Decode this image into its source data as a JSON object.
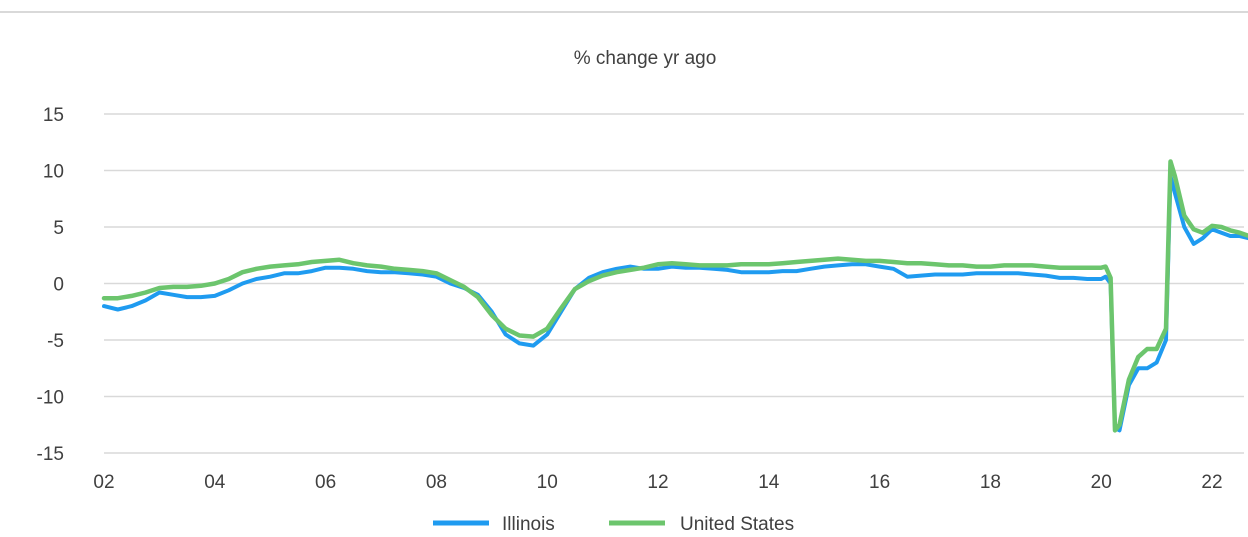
{
  "chart_data": {
    "type": "line",
    "title": "% change yr ago",
    "xlabel": "",
    "ylabel": "",
    "xlim": [
      2002.0,
      2022.67
    ],
    "ylim": [
      -15,
      15
    ],
    "y_ticks": [
      15,
      10,
      5,
      0,
      -5,
      -10,
      -15
    ],
    "x_ticks": [
      {
        "value": 2002,
        "label": "02"
      },
      {
        "value": 2004,
        "label": "04"
      },
      {
        "value": 2006,
        "label": "06"
      },
      {
        "value": 2008,
        "label": "08"
      },
      {
        "value": 2010,
        "label": "10"
      },
      {
        "value": 2012,
        "label": "12"
      },
      {
        "value": 2014,
        "label": "14"
      },
      {
        "value": 2016,
        "label": "16"
      },
      {
        "value": 2018,
        "label": "18"
      },
      {
        "value": 2020,
        "label": "20"
      },
      {
        "value": 2022,
        "label": "22"
      }
    ],
    "grid": "horizontal",
    "legend_position": "bottom-center",
    "series": [
      {
        "name": "Illinois",
        "color": "#1f9bf0",
        "points": [
          [
            2002.0,
            -2.0
          ],
          [
            2002.25,
            -2.3
          ],
          [
            2002.5,
            -2.0
          ],
          [
            2002.75,
            -1.5
          ],
          [
            2003.0,
            -0.8
          ],
          [
            2003.25,
            -1.0
          ],
          [
            2003.5,
            -1.2
          ],
          [
            2003.75,
            -1.2
          ],
          [
            2004.0,
            -1.1
          ],
          [
            2004.25,
            -0.6
          ],
          [
            2004.5,
            0.0
          ],
          [
            2004.75,
            0.4
          ],
          [
            2005.0,
            0.6
          ],
          [
            2005.25,
            0.9
          ],
          [
            2005.5,
            0.9
          ],
          [
            2005.75,
            1.1
          ],
          [
            2006.0,
            1.4
          ],
          [
            2006.25,
            1.4
          ],
          [
            2006.5,
            1.3
          ],
          [
            2006.75,
            1.1
          ],
          [
            2007.0,
            1.0
          ],
          [
            2007.25,
            1.0
          ],
          [
            2007.5,
            0.9
          ],
          [
            2007.75,
            0.8
          ],
          [
            2008.0,
            0.6
          ],
          [
            2008.25,
            0.0
          ],
          [
            2008.5,
            -0.4
          ],
          [
            2008.75,
            -1.0
          ],
          [
            2009.0,
            -2.5
          ],
          [
            2009.25,
            -4.5
          ],
          [
            2009.5,
            -5.3
          ],
          [
            2009.75,
            -5.5
          ],
          [
            2010.0,
            -4.5
          ],
          [
            2010.25,
            -2.5
          ],
          [
            2010.5,
            -0.5
          ],
          [
            2010.75,
            0.5
          ],
          [
            2011.0,
            1.0
          ],
          [
            2011.25,
            1.3
          ],
          [
            2011.5,
            1.5
          ],
          [
            2011.75,
            1.3
          ],
          [
            2012.0,
            1.3
          ],
          [
            2012.25,
            1.5
          ],
          [
            2012.5,
            1.4
          ],
          [
            2012.75,
            1.4
          ],
          [
            2013.0,
            1.3
          ],
          [
            2013.25,
            1.2
          ],
          [
            2013.5,
            1.0
          ],
          [
            2013.75,
            1.0
          ],
          [
            2014.0,
            1.0
          ],
          [
            2014.25,
            1.1
          ],
          [
            2014.5,
            1.1
          ],
          [
            2014.75,
            1.3
          ],
          [
            2015.0,
            1.5
          ],
          [
            2015.25,
            1.6
          ],
          [
            2015.5,
            1.7
          ],
          [
            2015.75,
            1.7
          ],
          [
            2016.0,
            1.5
          ],
          [
            2016.25,
            1.3
          ],
          [
            2016.5,
            0.6
          ],
          [
            2016.75,
            0.7
          ],
          [
            2017.0,
            0.8
          ],
          [
            2017.25,
            0.8
          ],
          [
            2017.5,
            0.8
          ],
          [
            2017.75,
            0.9
          ],
          [
            2018.0,
            0.9
          ],
          [
            2018.25,
            0.9
          ],
          [
            2018.5,
            0.9
          ],
          [
            2018.75,
            0.8
          ],
          [
            2019.0,
            0.7
          ],
          [
            2019.25,
            0.5
          ],
          [
            2019.5,
            0.5
          ],
          [
            2019.75,
            0.4
          ],
          [
            2020.0,
            0.4
          ],
          [
            2020.08,
            0.6
          ],
          [
            2020.17,
            0.0
          ],
          [
            2020.25,
            -12.8
          ],
          [
            2020.33,
            -13.0
          ],
          [
            2020.5,
            -9.0
          ],
          [
            2020.67,
            -7.5
          ],
          [
            2020.83,
            -7.5
          ],
          [
            2021.0,
            -7.0
          ],
          [
            2021.17,
            -5.0
          ],
          [
            2021.25,
            9.5
          ],
          [
            2021.33,
            8.0
          ],
          [
            2021.5,
            5.0
          ],
          [
            2021.67,
            3.5
          ],
          [
            2021.83,
            4.0
          ],
          [
            2022.0,
            4.8
          ],
          [
            2022.17,
            4.5
          ],
          [
            2022.33,
            4.2
          ],
          [
            2022.5,
            4.2
          ],
          [
            2022.67,
            4.0
          ]
        ]
      },
      {
        "name": "United States",
        "color": "#6cc56d",
        "points": [
          [
            2002.0,
            -1.3
          ],
          [
            2002.25,
            -1.3
          ],
          [
            2002.5,
            -1.1
          ],
          [
            2002.75,
            -0.8
          ],
          [
            2003.0,
            -0.4
          ],
          [
            2003.25,
            -0.3
          ],
          [
            2003.5,
            -0.3
          ],
          [
            2003.75,
            -0.2
          ],
          [
            2004.0,
            0.0
          ],
          [
            2004.25,
            0.4
          ],
          [
            2004.5,
            1.0
          ],
          [
            2004.75,
            1.3
          ],
          [
            2005.0,
            1.5
          ],
          [
            2005.25,
            1.6
          ],
          [
            2005.5,
            1.7
          ],
          [
            2005.75,
            1.9
          ],
          [
            2006.0,
            2.0
          ],
          [
            2006.25,
            2.1
          ],
          [
            2006.5,
            1.8
          ],
          [
            2006.75,
            1.6
          ],
          [
            2007.0,
            1.5
          ],
          [
            2007.25,
            1.3
          ],
          [
            2007.5,
            1.2
          ],
          [
            2007.75,
            1.1
          ],
          [
            2008.0,
            0.9
          ],
          [
            2008.25,
            0.3
          ],
          [
            2008.5,
            -0.3
          ],
          [
            2008.75,
            -1.2
          ],
          [
            2009.0,
            -2.8
          ],
          [
            2009.25,
            -4.0
          ],
          [
            2009.5,
            -4.6
          ],
          [
            2009.75,
            -4.7
          ],
          [
            2010.0,
            -4.0
          ],
          [
            2010.25,
            -2.2
          ],
          [
            2010.5,
            -0.5
          ],
          [
            2010.75,
            0.2
          ],
          [
            2011.0,
            0.7
          ],
          [
            2011.25,
            1.0
          ],
          [
            2011.5,
            1.2
          ],
          [
            2011.75,
            1.4
          ],
          [
            2012.0,
            1.7
          ],
          [
            2012.25,
            1.8
          ],
          [
            2012.5,
            1.7
          ],
          [
            2012.75,
            1.6
          ],
          [
            2013.0,
            1.6
          ],
          [
            2013.25,
            1.6
          ],
          [
            2013.5,
            1.7
          ],
          [
            2013.75,
            1.7
          ],
          [
            2014.0,
            1.7
          ],
          [
            2014.25,
            1.8
          ],
          [
            2014.5,
            1.9
          ],
          [
            2014.75,
            2.0
          ],
          [
            2015.0,
            2.1
          ],
          [
            2015.25,
            2.2
          ],
          [
            2015.5,
            2.1
          ],
          [
            2015.75,
            2.0
          ],
          [
            2016.0,
            2.0
          ],
          [
            2016.25,
            1.9
          ],
          [
            2016.5,
            1.8
          ],
          [
            2016.75,
            1.8
          ],
          [
            2017.0,
            1.7
          ],
          [
            2017.25,
            1.6
          ],
          [
            2017.5,
            1.6
          ],
          [
            2017.75,
            1.5
          ],
          [
            2018.0,
            1.5
          ],
          [
            2018.25,
            1.6
          ],
          [
            2018.5,
            1.6
          ],
          [
            2018.75,
            1.6
          ],
          [
            2019.0,
            1.5
          ],
          [
            2019.25,
            1.4
          ],
          [
            2019.5,
            1.4
          ],
          [
            2019.75,
            1.4
          ],
          [
            2020.0,
            1.4
          ],
          [
            2020.08,
            1.5
          ],
          [
            2020.17,
            0.5
          ],
          [
            2020.25,
            -13.0
          ],
          [
            2020.33,
            -12.5
          ],
          [
            2020.5,
            -8.5
          ],
          [
            2020.67,
            -6.5
          ],
          [
            2020.83,
            -5.8
          ],
          [
            2021.0,
            -5.8
          ],
          [
            2021.17,
            -4.0
          ],
          [
            2021.25,
            10.8
          ],
          [
            2021.33,
            9.5
          ],
          [
            2021.5,
            6.0
          ],
          [
            2021.67,
            4.8
          ],
          [
            2021.83,
            4.5
          ],
          [
            2022.0,
            5.1
          ],
          [
            2022.17,
            5.0
          ],
          [
            2022.33,
            4.7
          ],
          [
            2022.5,
            4.5
          ],
          [
            2022.67,
            4.2
          ]
        ]
      }
    ]
  }
}
